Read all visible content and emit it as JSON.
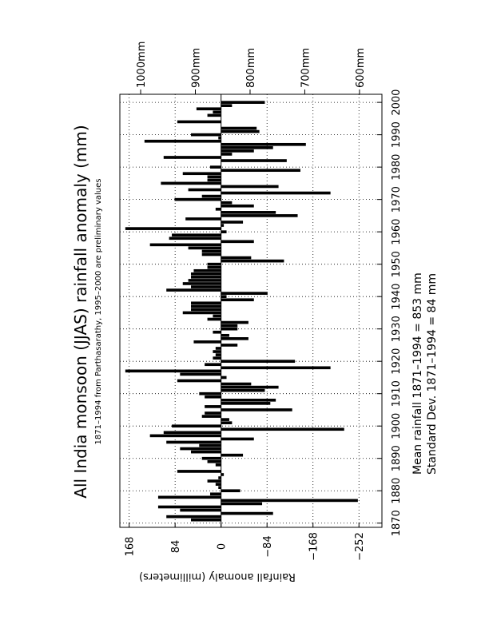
{
  "chart_data": {
    "type": "bar",
    "title": "All India monsoon (JJAS) rainfall anomaly (mm)",
    "subtitle": "1871–1994 from Parthasarathy, 1995–2000 are preliminary values",
    "y_label": "Rainfall anomaly (millimeters)",
    "annotations": [
      "Mean rainfall  1871–1994 = 853 mm",
      "Standard Dev. 1871–1994 =  84 mm"
    ],
    "color": "#000000",
    "grid": true,
    "x": [
      1871,
      1872,
      1873,
      1874,
      1875,
      1876,
      1877,
      1878,
      1879,
      1880,
      1881,
      1882,
      1883,
      1884,
      1885,
      1886,
      1887,
      1888,
      1889,
      1890,
      1891,
      1892,
      1893,
      1894,
      1895,
      1896,
      1897,
      1898,
      1899,
      1900,
      1901,
      1902,
      1903,
      1904,
      1905,
      1906,
      1907,
      1908,
      1909,
      1910,
      1911,
      1912,
      1913,
      1914,
      1915,
      1916,
      1917,
      1918,
      1919,
      1920,
      1921,
      1922,
      1923,
      1924,
      1925,
      1926,
      1927,
      1928,
      1929,
      1930,
      1931,
      1932,
      1933,
      1934,
      1935,
      1936,
      1937,
      1938,
      1939,
      1940,
      1941,
      1942,
      1943,
      1944,
      1945,
      1946,
      1947,
      1948,
      1949,
      1950,
      1951,
      1952,
      1953,
      1954,
      1955,
      1956,
      1957,
      1958,
      1959,
      1960,
      1961,
      1962,
      1963,
      1964,
      1965,
      1966,
      1967,
      1968,
      1969,
      1970,
      1971,
      1972,
      1973,
      1974,
      1975,
      1976,
      1977,
      1978,
      1979,
      1980,
      1981,
      1982,
      1983,
      1984,
      1985,
      1986,
      1987,
      1988,
      1989,
      1990,
      1991,
      1992,
      1993,
      1994,
      1995,
      1996,
      1997,
      1998,
      1999,
      2000
    ],
    "values": [
      55,
      100,
      -95,
      75,
      115,
      -75,
      -250,
      115,
      20,
      -35,
      5,
      10,
      25,
      5,
      -5,
      80,
      0,
      10,
      25,
      35,
      -40,
      55,
      75,
      40,
      100,
      -60,
      130,
      105,
      -225,
      90,
      -20,
      -15,
      35,
      30,
      -130,
      30,
      -90,
      -100,
      30,
      40,
      -80,
      -105,
      -55,
      80,
      -10,
      75,
      175,
      -200,
      30,
      -135,
      15,
      10,
      15,
      10,
      -30,
      50,
      -50,
      -15,
      15,
      -30,
      -30,
      -50,
      25,
      15,
      70,
      55,
      55,
      55,
      -60,
      -10,
      -85,
      100,
      55,
      70,
      60,
      55,
      55,
      50,
      25,
      25,
      -115,
      -55,
      35,
      35,
      60,
      130,
      -60,
      95,
      90,
      -10,
      175,
      -5,
      -40,
      65,
      -140,
      -100,
      10,
      -60,
      -20,
      85,
      35,
      -200,
      60,
      -105,
      110,
      25,
      25,
      70,
      -145,
      20,
      0,
      -120,
      105,
      -20,
      -60,
      -95,
      -155,
      140,
      5,
      55,
      -70,
      -65,
      0,
      80,
      0,
      25,
      15,
      45,
      -20,
      -80
    ],
    "xlim": [
      1868.7,
      2002.5
    ],
    "xticks": [
      1870,
      1880,
      1890,
      1900,
      1910,
      1920,
      1930,
      1940,
      1950,
      1960,
      1970,
      1980,
      1990,
      2000
    ],
    "ylim": [
      -294,
      185
    ],
    "yticks": [
      168,
      84,
      0,
      {
        "value": -84,
        "label": "−84"
      },
      {
        "value": -168,
        "label": "−168"
      },
      {
        "value": -252,
        "label": "−252"
      }
    ],
    "y2lim": [
      559,
      1038
    ],
    "y2ticks": [
      {
        "value": 1000,
        "label": "1000mm"
      },
      {
        "value": 900,
        "label": "900mm"
      },
      {
        "value": 800,
        "label": "800mm"
      },
      {
        "value": 700,
        "label": "700mm"
      },
      {
        "value": 600,
        "label": "600mm"
      }
    ]
  }
}
